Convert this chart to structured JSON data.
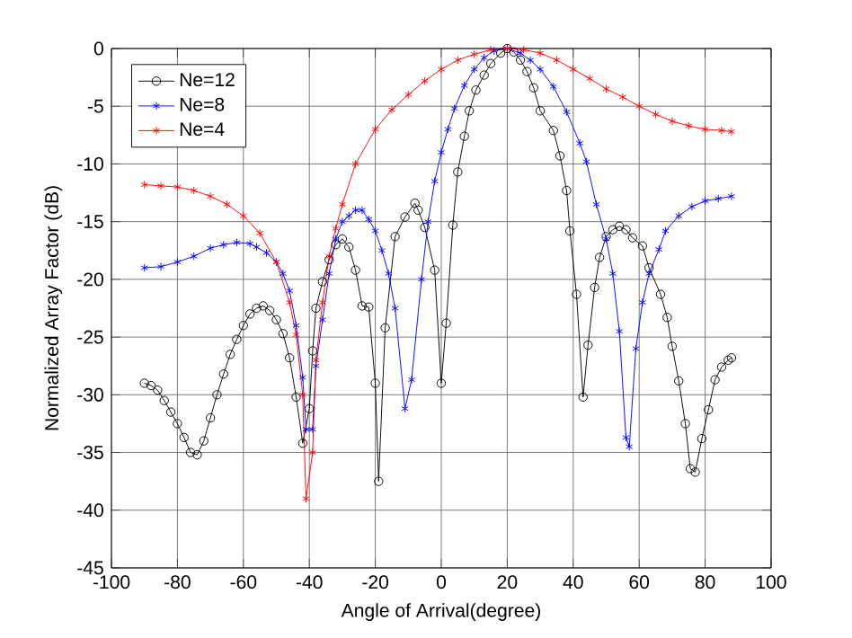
{
  "chart_data": {
    "type": "line",
    "xlabel": "Angle of Arrival(degree)",
    "ylabel": "Normalized Array Factor (dB)",
    "xlim": [
      -100,
      100
    ],
    "xticks": [
      -100,
      -80,
      -60,
      -40,
      -20,
      0,
      20,
      40,
      60,
      80,
      100
    ],
    "ylim": [
      -45,
      0
    ],
    "yticks": [
      -45,
      -40,
      -35,
      -30,
      -25,
      -20,
      -15,
      -10,
      -5,
      0
    ],
    "grid": true,
    "legend": "top left",
    "line_style": "solid",
    "series": [
      {
        "name": "Ne=12",
        "color": "#000000",
        "marker": "circle",
        "x": [
          -90,
          -88,
          -86,
          -84,
          -82,
          -80,
          -78,
          -76,
          -74,
          -72,
          -70,
          -68,
          -66,
          -64,
          -62,
          -60,
          -58,
          -56,
          -54,
          -52,
          -50,
          -48,
          -46,
          -44,
          -42,
          -40,
          -39,
          -38,
          -36,
          -34,
          -32,
          -30,
          -28,
          -26,
          -24,
          -22,
          -20,
          -19,
          -17,
          -14,
          -11,
          -8,
          -7,
          -5,
          -2,
          0,
          1.5,
          3.5,
          5,
          7,
          8.5,
          10.5,
          13,
          15,
          18,
          20,
          22,
          24,
          26,
          28,
          30,
          34,
          36,
          38,
          39,
          41,
          43,
          44.5,
          46.5,
          48,
          50,
          52,
          54,
          56,
          58,
          61,
          63,
          66.5,
          68.5,
          70,
          72,
          74,
          75.5,
          77,
          79,
          81,
          83,
          85,
          87,
          88
        ],
        "values": [
          -29,
          -29.2,
          -29.6,
          -30.5,
          -31.5,
          -32.5,
          -33.7,
          -35,
          -35.2,
          -34,
          -32,
          -30,
          -28.2,
          -26.5,
          -25.2,
          -24,
          -23,
          -22.5,
          -22.3,
          -22.7,
          -23.5,
          -24.7,
          -26.8,
          -30.2,
          -34.2,
          -31.2,
          -26.2,
          -22.5,
          -20.2,
          -18.3,
          -17,
          -16.5,
          -17.2,
          -19.2,
          -22.3,
          -22.4,
          -29,
          -37.5,
          -24.2,
          -16.3,
          -14.6,
          -13.4,
          -14,
          -15.5,
          -19.2,
          -29,
          -23.8,
          -15.3,
          -10.7,
          -7.6,
          -5.4,
          -3.6,
          -2.3,
          -1.3,
          -0.4,
          0,
          -0.3,
          -1,
          -2,
          -3.4,
          -5.4,
          -7.1,
          -9.3,
          -12.3,
          -15.8,
          -21.3,
          -30.2,
          -25.7,
          -20.7,
          -18.1,
          -16.3,
          -15.7,
          -15.4,
          -15.7,
          -16.4,
          -17.1,
          -19,
          -21.3,
          -23.3,
          -25.8,
          -28.8,
          -32.5,
          -36.4,
          -36.7,
          -33.8,
          -31.3,
          -28.7,
          -27.6,
          -27,
          -26.8
        ]
      },
      {
        "name": "Ne=8",
        "color": "#0000ff",
        "marker": "cross",
        "x": [
          -90,
          -85,
          -80,
          -75,
          -70,
          -66,
          -62,
          -58,
          -56,
          -53,
          -50,
          -48,
          -46,
          -44,
          -42,
          -41,
          -39,
          -38,
          -36,
          -34,
          -32,
          -30,
          -28,
          -26,
          -24,
          -22,
          -20,
          -18,
          -16,
          -14,
          -11,
          -9,
          -6,
          -4,
          -2,
          0,
          2,
          4,
          7,
          10,
          13,
          16,
          20,
          24,
          27,
          30,
          34,
          38,
          42,
          44,
          47,
          50,
          52,
          54,
          56,
          57,
          59,
          61,
          63,
          66,
          68,
          72,
          76,
          80,
          84,
          88
        ],
        "values": [
          -19,
          -18.9,
          -18.5,
          -18,
          -17.3,
          -17,
          -16.8,
          -16.9,
          -17.2,
          -17.7,
          -18.5,
          -19.5,
          -21,
          -24,
          -28.5,
          -33,
          -33,
          -27.5,
          -23.5,
          -19.5,
          -16.5,
          -15,
          -14.5,
          -14,
          -14,
          -14.8,
          -15.8,
          -17.5,
          -19.5,
          -22.5,
          -31.2,
          -28.7,
          -20,
          -15,
          -11.5,
          -9,
          -7,
          -5.2,
          -3.2,
          -1.8,
          -0.8,
          -0.2,
          0,
          -0.4,
          -1,
          -1.8,
          -3.3,
          -5.5,
          -8.2,
          -9.8,
          -13.5,
          -16.5,
          -19.5,
          -24.5,
          -33.7,
          -34.5,
          -26,
          -22,
          -19.5,
          -17.4,
          -15.8,
          -14.5,
          -13.7,
          -13.2,
          -13,
          -12.8
        ]
      },
      {
        "name": "Ne=4",
        "color": "#ff0000",
        "marker": "cross",
        "x": [
          -90,
          -85,
          -80,
          -75,
          -70,
          -65,
          -60,
          -55,
          -50,
          -46,
          -44,
          -42,
          -41,
          -39,
          -38,
          -36,
          -34,
          -32,
          -30,
          -26,
          -20,
          -15,
          -10,
          -5,
          0,
          5,
          10,
          15,
          20,
          25,
          30,
          35,
          40,
          45,
          50,
          55,
          60,
          65,
          70,
          75,
          80,
          85,
          88
        ],
        "values": [
          -11.8,
          -11.9,
          -12,
          -12.3,
          -12.8,
          -13.5,
          -14.5,
          -16,
          -18.5,
          -22,
          -24.8,
          -30,
          -39,
          -35,
          -27,
          -22,
          -18,
          -15.6,
          -13.5,
          -10,
          -7,
          -5.3,
          -4,
          -2.8,
          -1.8,
          -1,
          -0.5,
          -0.1,
          0,
          -0.1,
          -0.4,
          -1,
          -1.8,
          -2.6,
          -3.5,
          -4.2,
          -5,
          -5.7,
          -6.3,
          -6.7,
          -7,
          -7.1,
          -7.2
        ]
      }
    ]
  }
}
